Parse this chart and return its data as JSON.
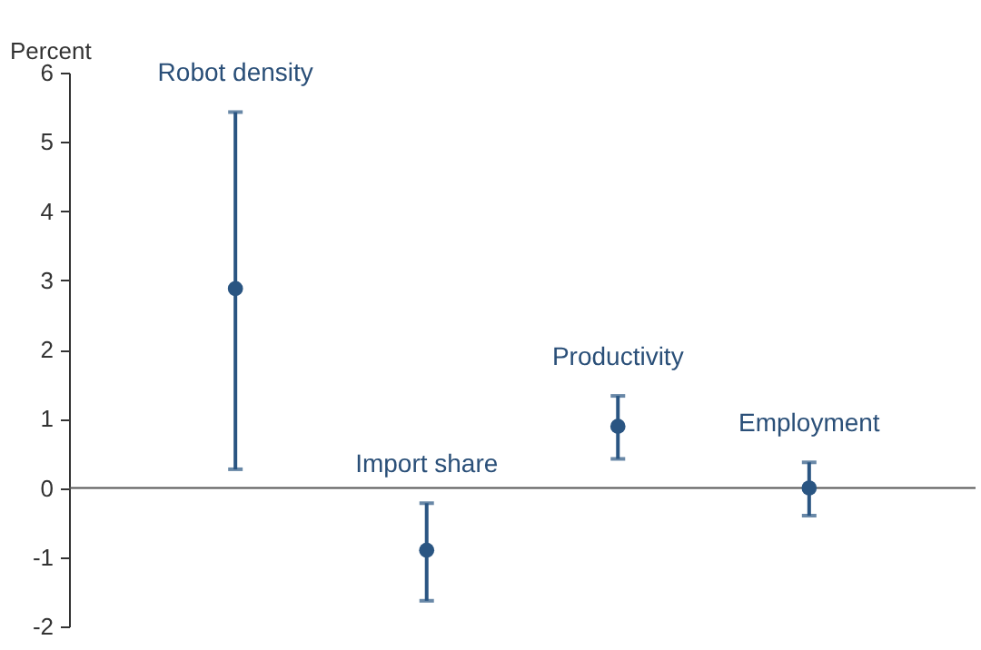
{
  "chart_data": {
    "type": "scatter",
    "ylabel": "Percent",
    "categories": [
      "Robot density",
      "Import share",
      "Productivity",
      "Employment"
    ],
    "values": [
      2.88,
      -0.9,
      0.89,
      0.0
    ],
    "errors": [
      [
        0.27,
        5.43
      ],
      [
        -1.63,
        -0.22
      ],
      [
        0.42,
        1.33
      ],
      [
        -0.4,
        0.37
      ]
    ],
    "color": "#2a5582",
    "marker": "circle",
    "ylim": [
      -2,
      6
    ],
    "yticks": [
      -2,
      -1,
      0,
      1,
      2,
      3,
      4,
      5,
      6
    ],
    "ref_lines": [
      {
        "axis": "y",
        "value": 0,
        "color": "#555555"
      }
    ],
    "tick_labels": "y",
    "grid": false
  }
}
